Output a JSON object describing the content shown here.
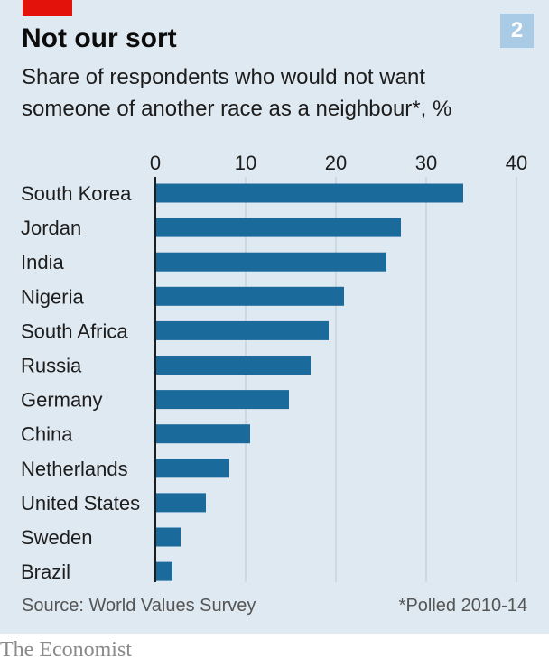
{
  "header": {
    "title": "Not our sort",
    "badge": "2",
    "subtitle_line1": "Share of respondents who would not want",
    "subtitle_line2": "someone of another race as a neighbour*, %"
  },
  "footer": {
    "source": "Source: World Values Survey",
    "footnote": "*Polled 2010-14",
    "brand": "The Economist"
  },
  "colors": {
    "bar": "#1b6a9c",
    "panel_background": "#dfe9f1",
    "gridline": "#b9c8d3",
    "accent_red": "#e3120b",
    "badge": "#a9cbe6"
  },
  "chart_data": {
    "type": "bar",
    "orientation": "horizontal",
    "categories": [
      "South Korea",
      "Jordan",
      "India",
      "Nigeria",
      "South Africa",
      "Russia",
      "Germany",
      "China",
      "Netherlands",
      "United States",
      "Sweden",
      "Brazil"
    ],
    "values": [
      34.1,
      27.2,
      25.6,
      20.9,
      19.2,
      17.2,
      14.8,
      10.5,
      8.2,
      5.6,
      2.8,
      1.9
    ],
    "title": "Not our sort",
    "xlabel": "",
    "ylabel": "",
    "xlim": [
      0,
      40
    ],
    "ticks": [
      0,
      10,
      20,
      30,
      40
    ],
    "tick_labels": [
      "0",
      "10",
      "20",
      "30",
      "40"
    ],
    "grid": true,
    "axis_position": "top"
  }
}
